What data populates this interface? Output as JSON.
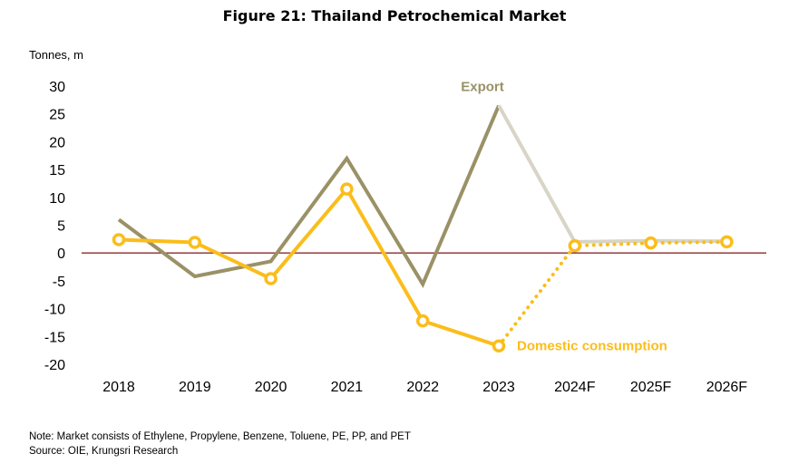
{
  "title": "Figure 21: Thailand Petrochemical Market",
  "y_unit_label": "Tonnes, m",
  "notes": {
    "note": "Note: Market consists of Ethylene, Propylene, Benzene, Toluene, PE, PP, and PET",
    "source": "Source: OIE, Krungsri Research"
  },
  "colors": {
    "export": "#9a9166",
    "export_forecast": "#d8d5c6",
    "domestic": "#fbbd1b",
    "zero_line": "#8b2a2a"
  },
  "chart_data": {
    "type": "line",
    "title": "Figure 21: Thailand Petrochemical Market",
    "ylabel": "Tonnes, m",
    "xlabel": "",
    "categories": [
      "2018",
      "2019",
      "2020",
      "2021",
      "2022",
      "2023",
      "2024F",
      "2025F",
      "2026F"
    ],
    "ylim": [
      -20,
      30
    ],
    "yticks": [
      30,
      25,
      20,
      15,
      10,
      5,
      0,
      -5,
      -10,
      -15,
      -20
    ],
    "grid": false,
    "forecast_start_index": 5,
    "series": [
      {
        "name": "Export",
        "values": [
          6,
          -4.2,
          -1.5,
          17,
          -5.6,
          26.5,
          2,
          2.2,
          2.1
        ],
        "markers": false
      },
      {
        "name": "Domestic consumption",
        "values": [
          2.4,
          1.9,
          -4.6,
          11.5,
          -12.2,
          -16.7,
          1.3,
          1.8,
          2
        ],
        "markers": true
      }
    ]
  }
}
